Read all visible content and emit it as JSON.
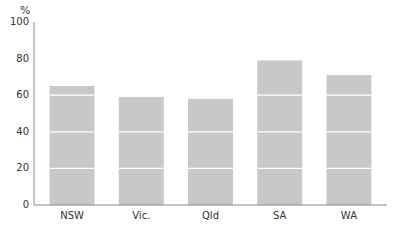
{
  "chart_data": {
    "type": "bar",
    "y_label": "%",
    "categories": [
      "NSW",
      "Vic.",
      "Qld",
      "SA",
      "WA"
    ],
    "values": [
      65,
      59,
      58,
      79,
      71
    ],
    "color": "#c8c8c8",
    "ylim": [
      0,
      100
    ],
    "yticks": [
      0,
      20,
      40,
      60,
      80,
      100
    ],
    "grid": false
  }
}
